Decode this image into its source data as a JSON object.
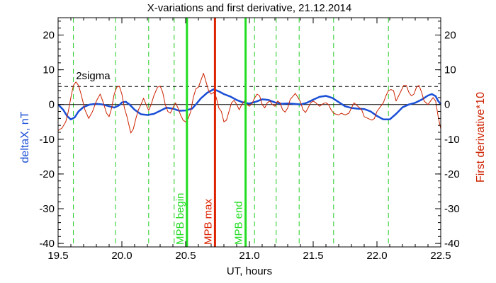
{
  "chart_data": {
    "type": "line",
    "title": "X-variations and first derivative, 21.12.2014",
    "xlabel": "UT, hours",
    "ylabel_left": "deltaX, nT",
    "ylabel_right": "First derivative*10",
    "xlim": [
      19.5,
      22.5
    ],
    "ylim": [
      -41,
      25
    ],
    "x_ticks": [
      "19.5",
      "20.0",
      "20.5",
      "21.0",
      "21.5",
      "22.0",
      "22.5"
    ],
    "y_ticks_left": [
      "20",
      "10",
      "0",
      "-10",
      "-20",
      "-30",
      "-40"
    ],
    "y_ticks_right": [
      "20",
      "10",
      "0",
      "-10",
      "-20",
      "-30",
      "-40"
    ],
    "threshold": {
      "label": "2sigma",
      "value": 5.2,
      "style": "dashed"
    },
    "zero_line": 0,
    "dashed_markers_x": [
      19.62,
      19.95,
      20.21,
      20.41,
      21.04,
      21.21,
      21.39,
      21.66,
      22.09
    ],
    "events": [
      {
        "label": "MPB begin",
        "x": 20.51,
        "color": "#22dd22"
      },
      {
        "label": "MPB max",
        "x": 20.73,
        "color": "#dd2200"
      },
      {
        "label": "MPB end",
        "x": 20.97,
        "color": "#22dd22"
      }
    ],
    "series": [
      {
        "axis": "left",
        "color": "#1a4fd6",
        "points": [
          [
            19.5,
            0
          ],
          [
            19.54,
            -1.5
          ],
          [
            19.57,
            -3.3
          ],
          [
            19.6,
            -4.3
          ],
          [
            19.63,
            -3.7
          ],
          [
            19.66,
            -2
          ],
          [
            19.7,
            -0.7
          ],
          [
            19.75,
            0
          ],
          [
            19.8,
            0.2
          ],
          [
            19.85,
            0
          ],
          [
            19.9,
            -0.5
          ],
          [
            19.94,
            -0.9
          ],
          [
            19.98,
            -0.2
          ],
          [
            20.0,
            0.6
          ],
          [
            20.03,
            0.8
          ],
          [
            20.06,
            0
          ],
          [
            20.1,
            -1.5
          ],
          [
            20.15,
            -2.8
          ],
          [
            20.2,
            -3
          ],
          [
            20.25,
            -2.7
          ],
          [
            20.3,
            -1.8
          ],
          [
            20.35,
            -0.9
          ],
          [
            20.4,
            -1.2
          ],
          [
            20.45,
            -1.8
          ],
          [
            20.5,
            -1.7
          ],
          [
            20.55,
            -1.2
          ],
          [
            20.58,
            0
          ],
          [
            20.62,
            1.8
          ],
          [
            20.67,
            3.4
          ],
          [
            20.72,
            4.4
          ],
          [
            20.76,
            3.8
          ],
          [
            20.8,
            3
          ],
          [
            20.85,
            2.3
          ],
          [
            20.9,
            1.3
          ],
          [
            20.95,
            0.6
          ],
          [
            21.0,
            0.3
          ],
          [
            21.05,
            0.8
          ],
          [
            21.1,
            1.5
          ],
          [
            21.15,
            1.3
          ],
          [
            21.2,
            0.6
          ],
          [
            21.25,
            0.2
          ],
          [
            21.3,
            0.3
          ],
          [
            21.35,
            0.2
          ],
          [
            21.4,
            0
          ],
          [
            21.45,
            0.5
          ],
          [
            21.5,
            1.4
          ],
          [
            21.55,
            2.2
          ],
          [
            21.6,
            2.5
          ],
          [
            21.65,
            1.9
          ],
          [
            21.7,
            0.7
          ],
          [
            21.75,
            -0.5
          ],
          [
            21.8,
            -1
          ],
          [
            21.85,
            -1.2
          ],
          [
            21.9,
            -1.3
          ],
          [
            21.95,
            -2
          ],
          [
            22.0,
            -3.3
          ],
          [
            22.05,
            -4.3
          ],
          [
            22.1,
            -4.3
          ],
          [
            22.15,
            -2.7
          ],
          [
            22.2,
            -0.8
          ],
          [
            22.25,
            0
          ],
          [
            22.3,
            0.5
          ],
          [
            22.35,
            1.4
          ],
          [
            22.4,
            2.6
          ],
          [
            22.43,
            3
          ],
          [
            22.46,
            2.4
          ],
          [
            22.48,
            1
          ],
          [
            22.5,
            0.1
          ]
        ]
      },
      {
        "axis": "right",
        "color": "#cc2200",
        "points": [
          [
            19.5,
            -7.5
          ],
          [
            19.53,
            -6.8
          ],
          [
            19.56,
            -5
          ],
          [
            19.58,
            -2
          ],
          [
            19.6,
            2
          ],
          [
            19.62,
            5.5
          ],
          [
            19.64,
            6.5
          ],
          [
            19.66,
            5.5
          ],
          [
            19.68,
            3
          ],
          [
            19.71,
            -1.5
          ],
          [
            19.74,
            -4
          ],
          [
            19.77,
            -2
          ],
          [
            19.8,
            1
          ],
          [
            19.83,
            3
          ],
          [
            19.85,
            1
          ],
          [
            19.88,
            -2.5
          ],
          [
            19.9,
            -3.5
          ],
          [
            19.92,
            -1
          ],
          [
            19.94,
            3
          ],
          [
            19.96,
            5
          ],
          [
            19.98,
            5.3
          ],
          [
            20.0,
            3
          ],
          [
            20.02,
            -1
          ],
          [
            20.04,
            -3.5
          ],
          [
            20.07,
            -8.2
          ],
          [
            20.09,
            -7
          ],
          [
            20.11,
            -4
          ],
          [
            20.13,
            -1.5
          ],
          [
            20.15,
            0
          ],
          [
            20.17,
            1.8
          ],
          [
            20.19,
            0
          ],
          [
            20.21,
            -1.7
          ],
          [
            20.23,
            0
          ],
          [
            20.25,
            2.5
          ],
          [
            20.28,
            5
          ],
          [
            20.3,
            5.3
          ],
          [
            20.32,
            3.5
          ],
          [
            20.34,
            0
          ],
          [
            20.36,
            -2
          ],
          [
            20.38,
            -2.5
          ],
          [
            20.4,
            -1
          ],
          [
            20.42,
            0.5
          ],
          [
            20.44,
            -1
          ],
          [
            20.46,
            -3
          ],
          [
            20.48,
            -4.5
          ],
          [
            20.5,
            -5
          ],
          [
            20.52,
            -4
          ],
          [
            20.54,
            -2
          ],
          [
            20.56,
            2
          ],
          [
            20.58,
            4.5
          ],
          [
            20.6,
            5
          ],
          [
            20.62,
            7
          ],
          [
            20.64,
            9
          ],
          [
            20.66,
            6.5
          ],
          [
            20.68,
            4
          ],
          [
            20.7,
            3
          ],
          [
            20.72,
            3.5
          ],
          [
            20.74,
            2
          ],
          [
            20.76,
            -1
          ],
          [
            20.78,
            -2
          ],
          [
            20.8,
            -5
          ],
          [
            20.82,
            -4.5
          ],
          [
            20.84,
            -2
          ],
          [
            20.86,
            0.5
          ],
          [
            20.88,
            1.2
          ],
          [
            20.9,
            0
          ],
          [
            20.92,
            -1.5
          ],
          [
            20.94,
            0
          ],
          [
            20.96,
            1
          ],
          [
            20.98,
            0
          ],
          [
            21.0,
            -0.5
          ],
          [
            21.02,
            0.3
          ],
          [
            21.04,
            1.8
          ],
          [
            21.06,
            3
          ],
          [
            21.08,
            2.5
          ],
          [
            21.1,
            0
          ],
          [
            21.12,
            -1
          ],
          [
            21.14,
            0.5
          ],
          [
            21.16,
            1
          ],
          [
            21.18,
            0
          ],
          [
            21.2,
            -0.5
          ],
          [
            21.22,
            1
          ],
          [
            21.24,
            0.5
          ],
          [
            21.26,
            -1.5
          ],
          [
            21.28,
            -2.2
          ],
          [
            21.3,
            -1
          ],
          [
            21.32,
            1.5
          ],
          [
            21.34,
            2.3
          ],
          [
            21.36,
            3.2
          ],
          [
            21.38,
            2
          ],
          [
            21.4,
            0.8
          ],
          [
            21.42,
            -1.5
          ],
          [
            21.44,
            -2.3
          ],
          [
            21.46,
            -1
          ],
          [
            21.48,
            0.5
          ],
          [
            21.5,
            1
          ],
          [
            21.52,
            0.5
          ],
          [
            21.55,
            -0.5
          ],
          [
            21.58,
            0.3
          ],
          [
            21.6,
            0.5
          ],
          [
            21.62,
            0
          ],
          [
            21.64,
            -1.5
          ],
          [
            21.66,
            -2.5
          ],
          [
            21.68,
            -2.8
          ],
          [
            21.7,
            -3
          ],
          [
            21.72,
            -2.5
          ],
          [
            21.75,
            -3
          ],
          [
            21.78,
            -2.5
          ],
          [
            21.8,
            -1
          ],
          [
            21.82,
            0.5
          ],
          [
            21.85,
            -0.5
          ],
          [
            21.88,
            -1.5
          ],
          [
            21.9,
            -3.5
          ],
          [
            21.93,
            -4
          ],
          [
            21.96,
            -4.5
          ],
          [
            21.98,
            -4
          ],
          [
            22.0,
            -2
          ],
          [
            22.02,
            -1
          ],
          [
            22.05,
            0.5
          ],
          [
            22.07,
            2.5
          ],
          [
            22.09,
            4
          ],
          [
            22.11,
            4.3
          ],
          [
            22.13,
            4
          ],
          [
            22.15,
            1
          ],
          [
            22.17,
            2.5
          ],
          [
            22.19,
            4
          ],
          [
            22.21,
            5.5
          ],
          [
            22.23,
            5.5
          ],
          [
            22.25,
            3.5
          ],
          [
            22.27,
            2.5
          ],
          [
            22.29,
            3
          ],
          [
            22.31,
            5
          ],
          [
            22.33,
            5.5
          ],
          [
            22.35,
            3.5
          ],
          [
            22.37,
            1
          ],
          [
            22.4,
            0
          ],
          [
            22.42,
            1
          ],
          [
            22.44,
            2
          ],
          [
            22.46,
            1
          ],
          [
            22.48,
            -3.5
          ],
          [
            22.5,
            -7
          ]
        ]
      }
    ]
  }
}
